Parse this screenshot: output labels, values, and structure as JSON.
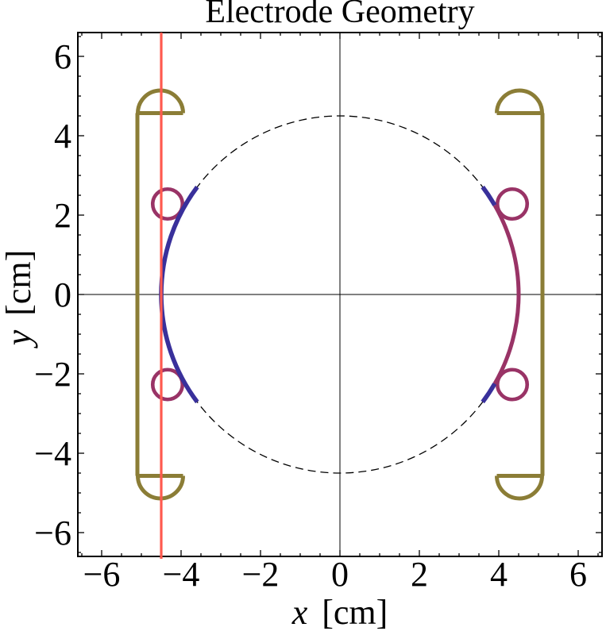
{
  "chart_data": {
    "type": "line",
    "title": "Electrode Geometry",
    "xlabel": "x  [cm]",
    "ylabel": "y  [cm]",
    "xlabel_var": "x",
    "xlabel_unit": "[cm]",
    "ylabel_var": "y",
    "ylabel_unit": "[cm]",
    "xlim": [
      -6.6,
      6.6
    ],
    "ylim": [
      -6.6,
      6.6
    ],
    "grid": false,
    "legend": "none",
    "x_tick_values": [
      -6,
      -4,
      -2,
      0,
      2,
      4,
      6
    ],
    "x_tick_labels": [
      "−6",
      "−4",
      "−2",
      "0",
      "2",
      "4",
      "6"
    ],
    "y_tick_values": [
      -6,
      -4,
      -2,
      0,
      2,
      4,
      6
    ],
    "y_tick_labels": [
      "−6",
      "−4",
      "−2",
      "0",
      "2",
      "4",
      "6"
    ],
    "minor_tick_step": 0.5,
    "colors": {
      "frame": "#000000",
      "axes": "#000000",
      "guide_circle": "#000000",
      "electrode_olive": "#8b7d36",
      "arc_blue": "#39309b",
      "arc_purple": "#993366",
      "reference_red": "#ff5a4f"
    },
    "geometry": {
      "guide_circle": {
        "cx": 0,
        "cy": 0,
        "r": 4.5,
        "style": "dashed"
      },
      "axes_cross": {
        "x": 0,
        "y": 0
      },
      "reference_line_x": -4.5,
      "inner_arcs": [
        {
          "name": "left-blue-arc",
          "cx": 0,
          "cy": 0,
          "r": 4.5,
          "angle_start": 143,
          "angle_end": 217,
          "color_key": "arc_blue",
          "width": 5.6
        },
        {
          "name": "right-purple-arc",
          "cx": 0,
          "cy": 0,
          "r": 4.5,
          "angle_start": -30,
          "angle_end": 30,
          "color_key": "arc_purple",
          "width": 5.0
        },
        {
          "name": "right-upper-blue-tip",
          "cx": 0,
          "cy": 0,
          "r": 4.5,
          "angle_start": 30,
          "angle_end": 37,
          "color_key": "arc_blue",
          "width": 5.6
        },
        {
          "name": "right-lower-blue-tip",
          "cx": 0,
          "cy": 0,
          "r": 4.5,
          "angle_start": -37,
          "angle_end": -30,
          "color_key": "arc_blue",
          "width": 5.6
        }
      ],
      "rings": [
        {
          "cx": -4.34,
          "cy": 2.28,
          "r": 0.375
        },
        {
          "cx": -4.34,
          "cy": -2.27,
          "r": 0.375
        },
        {
          "cx": 4.34,
          "cy": 2.28,
          "r": 0.375
        },
        {
          "cx": 4.34,
          "cy": -2.27,
          "r": 0.375
        }
      ],
      "ring_stroke_width": 4.6,
      "electrodes": {
        "sides": [
          -1,
          1
        ],
        "rod_x": 5.1,
        "rod_y_extent": 4.57,
        "cap_chord_y": 4.57,
        "cap_center_x": 4.52,
        "cap_radius": 0.57,
        "cap_chord_inner_x": 3.95,
        "line_width": 5.0
      }
    }
  }
}
